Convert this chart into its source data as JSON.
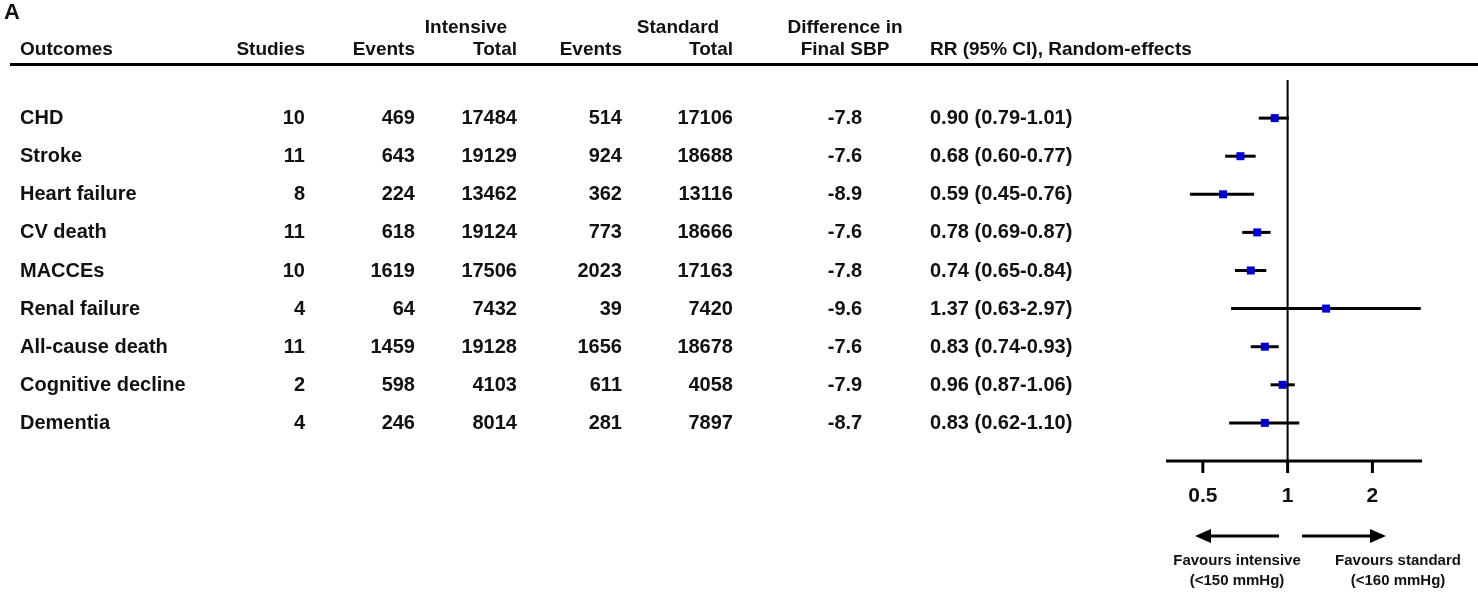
{
  "chart_data": [
    {
      "type": "other",
      "annotations": [
        "A",
        "Outcomes",
        "Intensive",
        "Standard"
      ],
      "categories": [
        "CHD",
        "Stroke",
        "Heart failure",
        "CV death",
        "MACCEs",
        "Renal failure",
        "All-cause death",
        "Cognitive decline",
        "Dementia"
      ],
      "series": [
        {
          "name": "Studies",
          "values": [
            10,
            11,
            8,
            11,
            10,
            4,
            11,
            2,
            4
          ]
        },
        {
          "name": "Events",
          "values": [
            469,
            643,
            224,
            618,
            1619,
            64,
            1459,
            598,
            246
          ]
        },
        {
          "name": "Total",
          "values": [
            17484,
            19129,
            13462,
            19124,
            17506,
            7432,
            19128,
            4103,
            8014
          ]
        },
        {
          "name": "Events",
          "values": [
            514,
            924,
            362,
            773,
            2023,
            39,
            1656,
            611,
            281
          ]
        },
        {
          "name": "Total",
          "values": [
            17106,
            18688,
            13116,
            18666,
            17163,
            7420,
            18678,
            4058,
            7897
          ]
        },
        {
          "name": "Difference in Final SBP",
          "values": [
            -7.8,
            -7.6,
            -8.9,
            -7.6,
            -7.8,
            -9.6,
            -7.6,
            -7.9,
            -8.7
          ]
        }
      ],
      "data_labels": true
    },
    {
      "type": "scatter",
      "orientation": "horizontal",
      "annotations": [
        "Favours intensive (<150 mmHg)",
        "Favours standard (<160 mmHg)"
      ],
      "categories": [
        null,
        null,
        null,
        null,
        null,
        null,
        null,
        null,
        null
      ],
      "series": [
        {
          "name": "RR (95% CI), Random-effects",
          "color": "#0000cc",
          "values": [
            0.9,
            0.68,
            0.59,
            0.78,
            0.74,
            1.37,
            0.83,
            0.96,
            0.83
          ],
          "errors": [
            [
              0.79,
              1.01
            ],
            [
              0.6,
              0.77
            ],
            [
              0.45,
              0.76
            ],
            [
              0.69,
              0.87
            ],
            [
              0.65,
              0.84
            ],
            [
              0.63,
              2.97
            ],
            [
              0.74,
              0.93
            ],
            [
              0.87,
              1.06
            ],
            [
              0.62,
              1.1
            ]
          ],
          "value_labels": [
            "0.90 (0.79-1.01)",
            "0.68 (0.60-0.77)",
            "0.59 (0.45-0.76)",
            "0.78 (0.69-0.87)",
            "0.74 (0.65-0.84)",
            "1.37 (0.63-2.97)",
            "0.83 (0.74-0.93)",
            "0.96 (0.87-1.06)",
            "0.83 (0.62-1.10)"
          ]
        }
      ],
      "marker": "square",
      "log": "x",
      "tick_labels": "x",
      "xlim": [
        0.37,
        3.0
      ],
      "xticks": [
        0.5,
        1,
        2
      ],
      "ref_lines": [
        {
          "axis": "x",
          "value": 1
        }
      ]
    }
  ]
}
